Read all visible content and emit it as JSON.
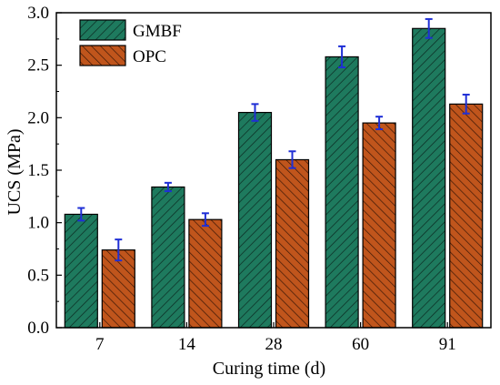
{
  "chart_data": {
    "type": "bar",
    "categories": [
      "7",
      "14",
      "28",
      "60",
      "91"
    ],
    "series": [
      {
        "name": "GMBF",
        "values": [
          1.08,
          1.34,
          2.05,
          2.58,
          2.85
        ],
        "errors": [
          0.06,
          0.04,
          0.08,
          0.1,
          0.09
        ],
        "color": "#1e7a5e"
      },
      {
        "name": "OPC",
        "values": [
          0.74,
          1.03,
          1.6,
          1.95,
          2.13
        ],
        "errors": [
          0.1,
          0.06,
          0.08,
          0.06,
          0.09
        ],
        "color": "#c0551c"
      }
    ],
    "xlabel": "Curing time (d)",
    "ylabel": "UCS (MPa)",
    "ylim": [
      0.0,
      3.0
    ],
    "yticks": [
      "0.0",
      "0.5",
      "1.0",
      "1.5",
      "2.0",
      "2.5",
      "3.0"
    ],
    "error_bar_color": "#1f2fd6",
    "legend": "top-left",
    "grid": false
  }
}
